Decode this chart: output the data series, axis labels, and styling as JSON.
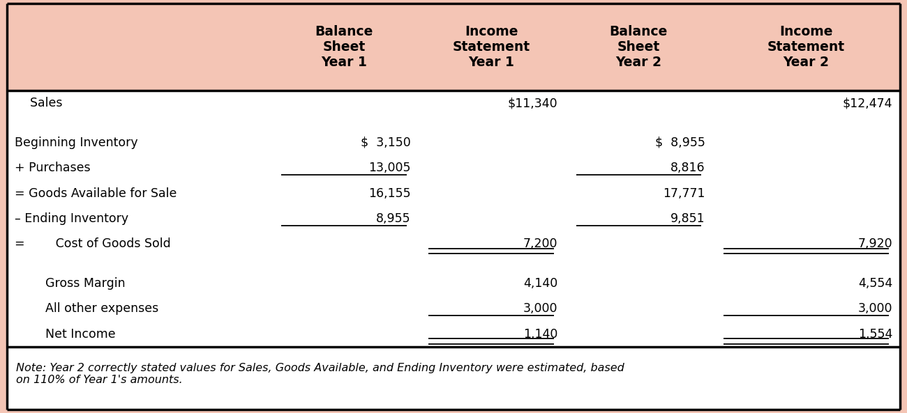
{
  "header_bg": "#F4C5B5",
  "body_bg": "#F4C5B5",
  "table_bg": "#FFFFFF",
  "border_color": "#000000",
  "header_texts": [
    "",
    "Balance\nSheet\nYear 1",
    "Income\nStatement\nYear 1",
    "Balance\nSheet\nYear 2",
    "Income\nStatement\nYear 2"
  ],
  "rows": [
    {
      "label": "    Sales",
      "c1": "",
      "c2": "$11,340",
      "c3": "",
      "c4": "$12,474",
      "ul1": false,
      "ul3": false,
      "dul2": false,
      "dul4": false,
      "spacer": false
    },
    {
      "label": "",
      "c1": "",
      "c2": "",
      "c3": "",
      "c4": "",
      "ul1": false,
      "ul3": false,
      "dul2": false,
      "dul4": false,
      "spacer": true
    },
    {
      "label": "Beginning Inventory",
      "c1": "$  3,150",
      "c2": "",
      "c3": "$  8,955",
      "c4": "",
      "ul1": false,
      "ul3": false,
      "dul2": false,
      "dul4": false,
      "spacer": false
    },
    {
      "label": "+ Purchases",
      "c1": "13,005",
      "c2": "",
      "c3": "8,816",
      "c4": "",
      "ul1": true,
      "ul3": true,
      "dul2": false,
      "dul4": false,
      "spacer": false
    },
    {
      "label": "= Goods Available for Sale",
      "c1": "16,155",
      "c2": "",
      "c3": "17,771",
      "c4": "",
      "ul1": false,
      "ul3": false,
      "dul2": false,
      "dul4": false,
      "spacer": false
    },
    {
      "label": "– Ending Inventory",
      "c1": "8,955",
      "c2": "",
      "c3": "9,851",
      "c4": "",
      "ul1": true,
      "ul3": true,
      "dul2": false,
      "dul4": false,
      "spacer": false
    },
    {
      "label": "=        Cost of Goods Sold",
      "c1": "",
      "c2": "7,200",
      "c3": "",
      "c4": "7,920",
      "ul1": false,
      "ul3": false,
      "dul2": true,
      "dul4": true,
      "spacer": false
    },
    {
      "label": "",
      "c1": "",
      "c2": "",
      "c3": "",
      "c4": "",
      "ul1": false,
      "ul3": false,
      "dul2": false,
      "dul4": false,
      "spacer": true
    },
    {
      "label": "        Gross Margin",
      "c1": "",
      "c2": "4,140",
      "c3": "",
      "c4": "4,554",
      "ul1": false,
      "ul3": false,
      "dul2": false,
      "dul4": false,
      "spacer": false
    },
    {
      "label": "        All other expenses",
      "c1": "",
      "c2": "3,000",
      "c3": "",
      "c4": "3,000",
      "ul1": false,
      "ul3": false,
      "dul2": false,
      "dul4": false,
      "ul2": true,
      "ul4": true
    },
    {
      "label": "        Net Income",
      "c1": "",
      "c2": "1,140",
      "c3": "",
      "c4": "1,554",
      "ul1": false,
      "ul3": false,
      "dul2": true,
      "dul4": true,
      "spacer": false
    }
  ],
  "note": "Note: Year 2 correctly stated values for Sales, Goods Available, and Ending Inventory were estimated, based\non 110% of Year 1's amounts.",
  "figsize": [
    13.0,
    5.93
  ],
  "dpi": 100
}
